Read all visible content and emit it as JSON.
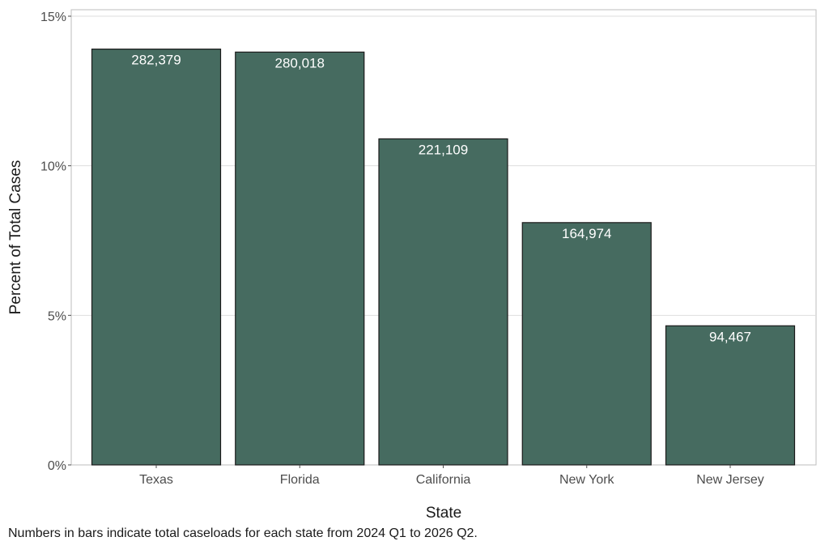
{
  "chart_data": {
    "type": "bar",
    "categories": [
      "Texas",
      "Florida",
      "California",
      "New York",
      "New Jersey"
    ],
    "values": [
      13.9,
      13.8,
      10.9,
      8.1,
      4.65
    ],
    "data_labels": [
      "282,379",
      "280,018",
      "221,109",
      "164,974",
      "94,467"
    ],
    "xlabel": "State",
    "ylabel": "Percent of Total Cases",
    "ylim": [
      0,
      15
    ],
    "yticks": [
      0,
      5,
      10,
      15
    ],
    "ytick_labels": [
      "0%",
      "5%",
      "10%",
      "15%"
    ],
    "grid": true,
    "bar_color": "#466b60",
    "bar_edge_color": "#1a1a1a"
  },
  "caption": "Numbers in bars indicate total caseloads for each state from 2024 Q1 to 2026 Q2."
}
